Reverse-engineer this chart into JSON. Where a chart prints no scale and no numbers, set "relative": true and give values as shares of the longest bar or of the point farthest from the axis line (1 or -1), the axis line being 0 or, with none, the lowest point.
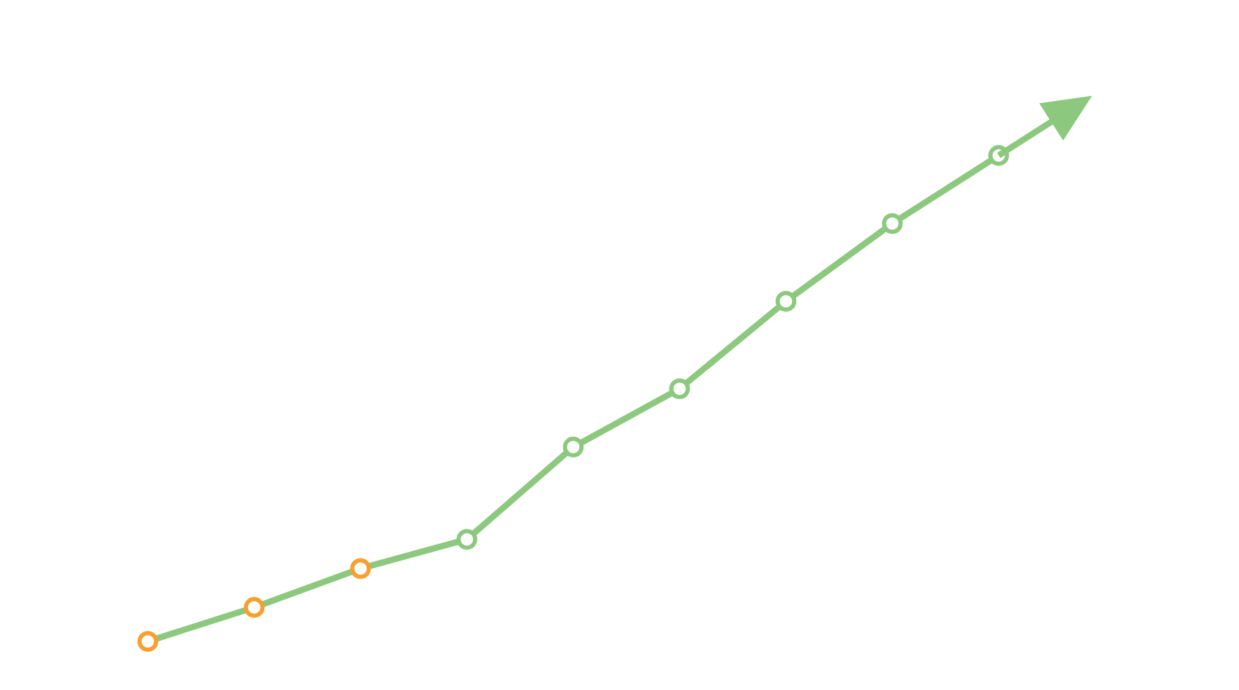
{
  "chart_data": {
    "type": "line",
    "relative": true,
    "categories": [
      null,
      null,
      null,
      null,
      null,
      null,
      null,
      null,
      null
    ],
    "series": [
      {
        "color": "#8cc97e",
        "colors": [
          "#f7a030",
          "#f7a030",
          "#f7a030",
          "#8cc97e",
          "#8cc97e",
          "#8cc97e",
          "#8cc97e",
          "#8cc97e",
          "#8cc97e"
        ],
        "values": [
          0,
          0.07,
          0.15,
          0.21,
          0.4,
          0.52,
          0.7,
          0.86,
          1
        ]
      }
    ],
    "marker": "circle",
    "line_style": "solid"
  }
}
